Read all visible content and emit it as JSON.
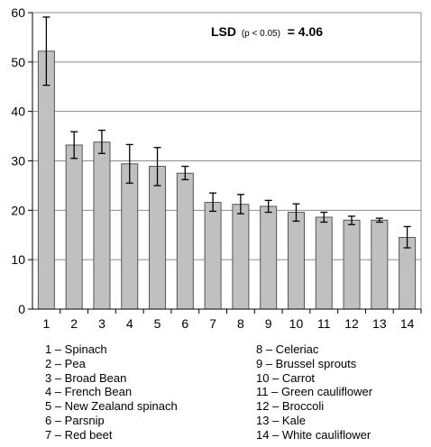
{
  "chart_data": {
    "type": "bar",
    "categories": [
      "1",
      "2",
      "3",
      "4",
      "5",
      "6",
      "7",
      "8",
      "9",
      "10",
      "11",
      "12",
      "13",
      "14"
    ],
    "values": [
      52.2,
      33.2,
      33.8,
      29.4,
      28.9,
      27.5,
      21.6,
      21.2,
      20.8,
      19.6,
      18.6,
      18.0,
      18.0,
      14.5
    ],
    "error_low": [
      45.3,
      30.5,
      31.5,
      25.5,
      25.0,
      26.2,
      19.8,
      19.3,
      19.6,
      17.8,
      17.6,
      17.1,
      17.6,
      12.4
    ],
    "error_high": [
      59.1,
      35.9,
      36.2,
      33.3,
      32.7,
      28.9,
      23.5,
      23.2,
      22.0,
      21.3,
      19.6,
      18.8,
      18.4,
      16.7
    ],
    "ylim": [
      0,
      60
    ],
    "yticks": [
      "0",
      "10",
      "20",
      "30",
      "40",
      "50",
      "60"
    ],
    "grid": true,
    "bar_color": "#c0c0c0",
    "annotation": {
      "prefix": "LSD",
      "subscript": "(p < 0.05)",
      "suffix": " = 4.06"
    },
    "legend_left": [
      "1 – Spinach",
      "2 – Pea",
      "3 – Broad Bean",
      "4 – French Bean",
      "5 – New Zealand spinach",
      "6 – Parsnip",
      "7 – Red beet"
    ],
    "legend_right": [
      "8 – Celeriac",
      "9 – Brussel sprouts",
      "10 – Carrot",
      "11 – Green cauliflower",
      "12 – Broccoli",
      "13 – Kale",
      "14 – White cauliflower"
    ]
  }
}
